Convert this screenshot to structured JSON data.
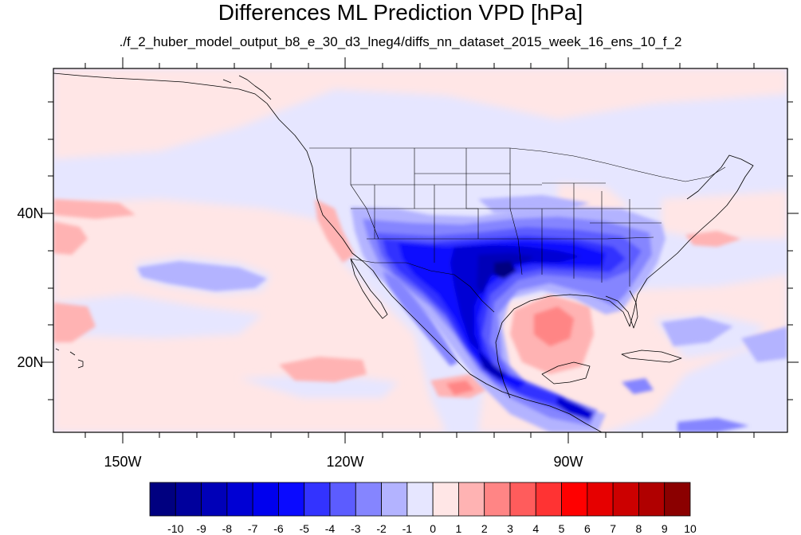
{
  "title": "Differences ML Prediction VPD [hPa]",
  "subtitle": "./f_2_huber_model_output_b8_e_30_d3_lneg4/diffs_nn_dataset_2015_week_16_ens_10_f_2",
  "axes": {
    "lat_labels": [
      "40N",
      "20N"
    ],
    "lon_labels": [
      "150W",
      "120W",
      "90W"
    ]
  },
  "colorbar": {
    "labels": [
      "-10",
      "-9",
      "-8",
      "-7",
      "-6",
      "-5",
      "-4",
      "-3",
      "-2",
      "-1",
      "0",
      "1",
      "2",
      "3",
      "4",
      "5",
      "6",
      "7",
      "8",
      "9",
      "10"
    ],
    "colors": [
      "#000080",
      "#00009c",
      "#0000b8",
      "#0000d4",
      "#0000ee",
      "#0a0aff",
      "#3333ff",
      "#5c5cff",
      "#8585ff",
      "#b3b3ff",
      "#e6e6ff",
      "#ffe6e6",
      "#ffb3b3",
      "#ff8585",
      "#ff5c5c",
      "#ff3333",
      "#ff0000",
      "#e60000",
      "#cc0000",
      "#b00000",
      "#8b0000"
    ]
  }
}
